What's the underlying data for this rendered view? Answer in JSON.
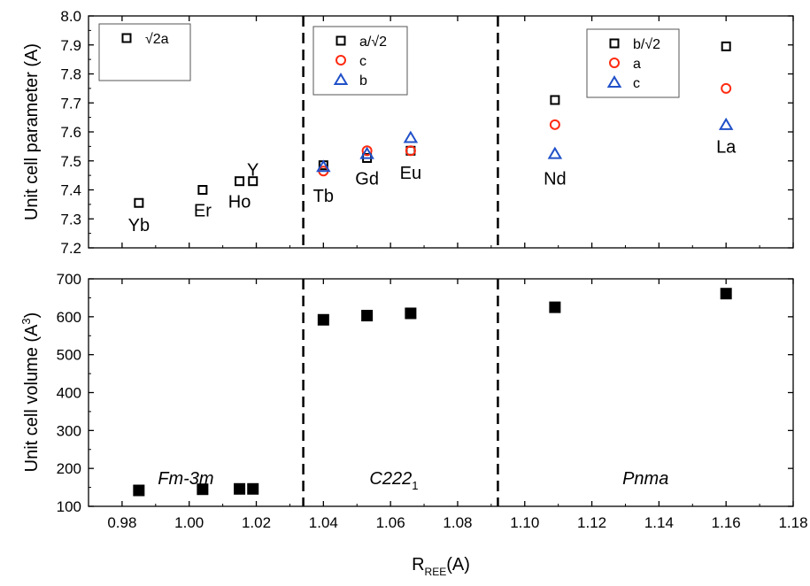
{
  "colors": {
    "black": "#000000",
    "red": "#ff2a10",
    "blue": "#2050c8"
  },
  "chart_data": [
    {
      "panel": "top",
      "type": "scatter",
      "ylabel": "Unit cell parameter (A)",
      "xlim": [
        0.97,
        1.18
      ],
      "ylim": [
        7.2,
        8.0
      ],
      "yticks": [
        "7.2",
        "7.3",
        "7.4",
        "7.5",
        "7.6",
        "7.7",
        "7.8",
        "7.9",
        "8.0"
      ],
      "dividers_x": [
        1.034,
        1.092
      ],
      "series": [
        {
          "name": "√2a",
          "marker": "open-square",
          "color": "black",
          "points": [
            [
              0.985,
              7.355
            ],
            [
              1.004,
              7.4
            ],
            [
              1.015,
              7.43
            ],
            [
              1.019,
              7.43
            ]
          ]
        },
        {
          "name": "a/√2",
          "marker": "open-square",
          "color": "black",
          "points": [
            [
              1.04,
              7.485
            ],
            [
              1.053,
              7.51
            ],
            [
              1.066,
              7.535
            ]
          ]
        },
        {
          "name": "c",
          "marker": "open-circle",
          "color": "red",
          "points": [
            [
              1.04,
              7.465
            ],
            [
              1.053,
              7.535
            ],
            [
              1.066,
              7.535
            ]
          ]
        },
        {
          "name": "b",
          "marker": "open-triangle",
          "color": "blue",
          "points": [
            [
              1.04,
              7.48
            ],
            [
              1.053,
              7.525
            ],
            [
              1.066,
              7.58
            ]
          ]
        },
        {
          "name": "b/√2",
          "marker": "open-square",
          "color": "black",
          "points": [
            [
              1.109,
              7.71
            ],
            [
              1.16,
              7.895
            ]
          ]
        },
        {
          "name": "a",
          "marker": "open-circle",
          "color": "red",
          "points": [
            [
              1.109,
              7.625
            ],
            [
              1.16,
              7.75
            ]
          ]
        },
        {
          "name": "c",
          "marker": "open-triangle",
          "color": "blue",
          "points": [
            [
              1.109,
              7.525
            ],
            [
              1.16,
              7.625
            ]
          ]
        }
      ],
      "legends": [
        {
          "items": [
            {
              "label": "√2a",
              "marker": "open-square",
              "color": "black"
            }
          ]
        },
        {
          "items": [
            {
              "label": "a/√2",
              "marker": "open-square",
              "color": "black"
            },
            {
              "label": "c",
              "marker": "open-circle",
              "color": "red"
            },
            {
              "label": "b",
              "marker": "open-triangle",
              "color": "blue"
            }
          ]
        },
        {
          "items": [
            {
              "label": "b/√2",
              "marker": "open-square",
              "color": "black"
            },
            {
              "label": "a",
              "marker": "open-circle",
              "color": "red"
            },
            {
              "label": "c",
              "marker": "open-triangle",
              "color": "blue"
            }
          ]
        }
      ],
      "element_labels": [
        {
          "text": "Yb",
          "x": 0.985,
          "y": 7.28
        },
        {
          "text": "Er",
          "x": 1.004,
          "y": 7.33
        },
        {
          "text": "Ho",
          "x": 1.015,
          "y": 7.36
        },
        {
          "text": "Y",
          "x": 1.019,
          "y": 7.47
        },
        {
          "text": "Tb",
          "x": 1.04,
          "y": 7.38
        },
        {
          "text": "Gd",
          "x": 1.053,
          "y": 7.44
        },
        {
          "text": "Eu",
          "x": 1.066,
          "y": 7.46
        },
        {
          "text": "Nd",
          "x": 1.109,
          "y": 7.44
        },
        {
          "text": "La",
          "x": 1.16,
          "y": 7.55
        }
      ]
    },
    {
      "panel": "bottom",
      "type": "scatter",
      "xlabel_main": "R",
      "xlabel_sub": "REE",
      "xlabel_tail": "(A)",
      "ylabel_main": "Unit cell volume (A",
      "ylabel_sup": "3",
      "ylabel_tail": ")",
      "xlim": [
        0.97,
        1.18
      ],
      "ylim": [
        100,
        700
      ],
      "xticks": [
        "0.98",
        "1.00",
        "1.02",
        "1.04",
        "1.06",
        "1.08",
        "1.10",
        "1.12",
        "1.14",
        "1.16",
        "1.18"
      ],
      "yticks": [
        "100",
        "200",
        "300",
        "400",
        "500",
        "600",
        "700"
      ],
      "dividers_x": [
        1.034,
        1.092
      ],
      "series": [
        {
          "name": "",
          "marker": "filled-square",
          "color": "black",
          "points": [
            [
              0.985,
              142
            ],
            [
              1.004,
              145
            ],
            [
              1.015,
              146
            ],
            [
              1.019,
              146
            ],
            [
              1.04,
              592
            ],
            [
              1.053,
              603
            ],
            [
              1.066,
              609
            ],
            [
              1.109,
              625
            ],
            [
              1.16,
              661
            ]
          ]
        }
      ],
      "phase_labels": [
        {
          "main": "Fm-3m",
          "sub": "",
          "x": 0.999,
          "y": 175
        },
        {
          "main": "C222",
          "sub": "1",
          "x": 1.061,
          "y": 175
        },
        {
          "main": "Pnma",
          "sub": "",
          "x": 1.136,
          "y": 175
        }
      ]
    }
  ]
}
